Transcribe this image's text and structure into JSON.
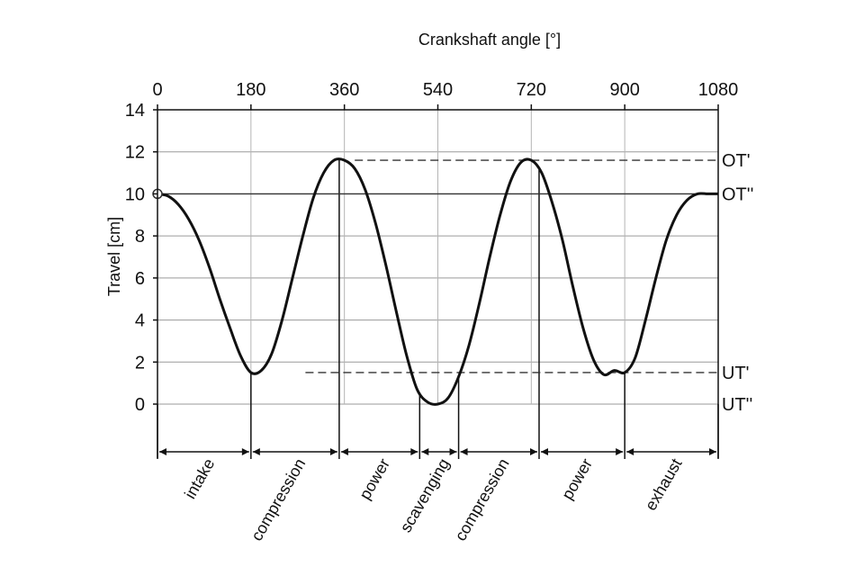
{
  "chart_data": {
    "type": "line",
    "title": "",
    "xlabel": "Crankshaft angle [°]",
    "ylabel": "Travel [cm]",
    "xlim": [
      0,
      1080
    ],
    "ylim": [
      0,
      14
    ],
    "x_ticks": [
      "0",
      "180",
      "360",
      "540",
      "720",
      "900",
      "1080"
    ],
    "y_ticks": [
      "14",
      "12",
      "10",
      "8",
      "6",
      "4",
      "2",
      "0"
    ],
    "x_axis_position": "top",
    "grid": true,
    "series": [
      {
        "x": [
          0,
          20,
          40,
          60,
          80,
          100,
          120,
          140,
          160,
          180,
          200,
          220,
          240,
          260,
          280,
          300,
          320,
          340,
          360,
          380,
          400,
          420,
          440,
          460,
          480,
          500,
          520,
          540,
          560,
          580,
          600,
          620,
          640,
          660,
          680,
          700,
          720,
          740,
          760,
          780,
          800,
          820,
          840,
          860,
          880,
          900,
          920,
          940,
          960,
          980,
          1000,
          1020,
          1040,
          1060,
          1080
        ],
        "y": [
          10.0,
          9.9,
          9.5,
          8.8,
          7.8,
          6.5,
          5.0,
          3.6,
          2.3,
          1.5,
          1.6,
          2.4,
          4.0,
          6.0,
          8.0,
          9.8,
          11.0,
          11.6,
          11.6,
          11.2,
          10.2,
          8.6,
          6.6,
          4.4,
          2.3,
          0.7,
          0.1,
          0.0,
          0.3,
          1.3,
          2.8,
          4.8,
          7.0,
          9.0,
          10.6,
          11.5,
          11.6,
          11.0,
          9.6,
          7.8,
          5.6,
          3.6,
          2.1,
          1.4,
          1.6,
          1.5,
          2.2,
          4.0,
          6.0,
          7.8,
          9.0,
          9.7,
          10.0,
          10.0,
          10.0
        ]
      }
    ],
    "levels": [
      {
        "label": "OT'",
        "value": 11.6,
        "style": "dashed"
      },
      {
        "label": "OT''",
        "value": 10.0,
        "style": "solid"
      },
      {
        "label": "UT'",
        "value": 1.5,
        "style": "dashed"
      },
      {
        "label": "UT''",
        "value": 0.0,
        "style": "none"
      }
    ],
    "phase_boundaries": [
      0,
      180,
      350,
      505,
      580,
      735,
      900,
      1080
    ],
    "phases": [
      {
        "label": "intake",
        "from": 0,
        "to": 180
      },
      {
        "label": "compression",
        "from": 180,
        "to": 350
      },
      {
        "label": "power",
        "from": 350,
        "to": 505
      },
      {
        "label": "scavenging",
        "from": 505,
        "to": 580
      },
      {
        "label": "compression",
        "from": 580,
        "to": 735
      },
      {
        "label": "power",
        "from": 735,
        "to": 900
      },
      {
        "label": "exhaust",
        "from": 900,
        "to": 1080
      }
    ]
  }
}
